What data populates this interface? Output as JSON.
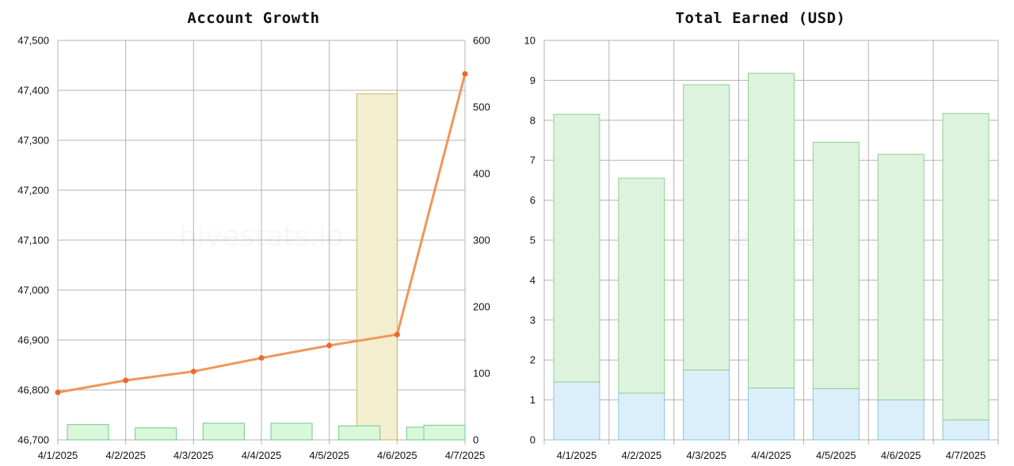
{
  "colors": {
    "line": "#f0965a",
    "point": "#ea6a2e",
    "bar_green_fill": "#d9f7d9",
    "bar_green_stroke": "#72c98a",
    "highlight_fill": "#f3eed0",
    "highlight_stroke": "#c9b860",
    "bar_blue_fill": "#dbeffa",
    "bar_blue_stroke": "#8cc3dd",
    "stack_green_fill": "#ddf3dd",
    "stack_green_stroke": "#8fcf93",
    "grid": "#b3b3b3"
  },
  "watermark": "hivestats.io",
  "chart_data": [
    {
      "type": "line",
      "title": "Account Growth",
      "categories": [
        "4/1/2025",
        "4/2/2025",
        "4/3/2025",
        "4/4/2025",
        "4/5/2025",
        "4/6/2025",
        "4/7/2025"
      ],
      "ylim": [
        46700,
        47500
      ],
      "y_ticks": [
        "46,700",
        "46,800",
        "46,900",
        "47,000",
        "47,100",
        "47,200",
        "47,300",
        "47,400",
        "47,500"
      ],
      "y2lim": [
        0,
        600
      ],
      "y2_ticks": [
        "0",
        "100",
        "200",
        "300",
        "400",
        "500",
        "600"
      ],
      "series": [
        {
          "type": "line",
          "axis": "left",
          "values": [
            46795,
            46819,
            46837,
            46864,
            46889,
            46911,
            47433
          ]
        },
        {
          "type": "bar",
          "axis": "right",
          "values": [
            23,
            18,
            25,
            25,
            21,
            19,
            22
          ]
        }
      ],
      "highlight": {
        "category": "4/6/2025",
        "value": 520
      },
      "grid": true
    },
    {
      "type": "bar",
      "stacked": true,
      "title": "Total Earned (USD)",
      "categories": [
        "4/1/2025",
        "4/2/2025",
        "4/3/2025",
        "4/4/2025",
        "4/5/2025",
        "4/6/2025",
        "4/7/2025"
      ],
      "ylim": [
        0,
        10
      ],
      "y_ticks": [
        "0",
        "1",
        "2",
        "3",
        "4",
        "5",
        "6",
        "7",
        "8",
        "9",
        "10"
      ],
      "series": [
        {
          "values": [
            1.45,
            1.17,
            1.75,
            1.3,
            1.28,
            1.0,
            0.5
          ]
        },
        {
          "values": [
            6.7,
            5.38,
            7.14,
            7.88,
            6.17,
            6.15,
            7.67
          ]
        }
      ],
      "grid": true
    }
  ]
}
